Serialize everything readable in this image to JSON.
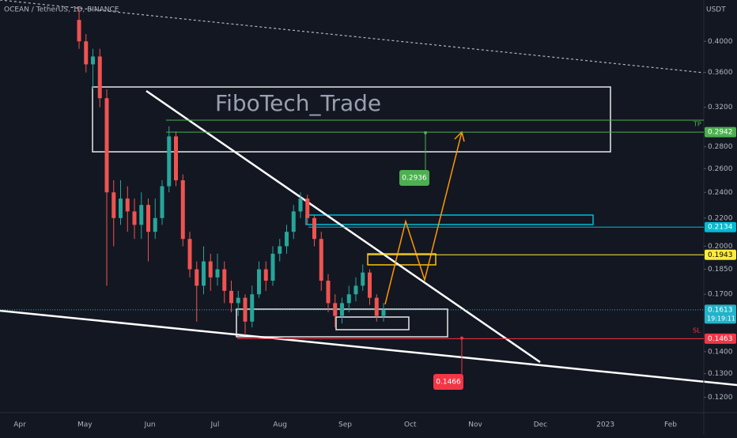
{
  "chart_data": {
    "type": "candlestick",
    "title": "OCEAN / TetherUS, 1D, BINANCE",
    "watermark": "FiboTech_Trade",
    "y_unit": "USDT",
    "log_scale": true,
    "ylim": [
      0.1145,
      0.46
    ],
    "yticks": [
      {
        "value": 0.4,
        "label": "0.4000"
      },
      {
        "value": 0.36,
        "label": "0.3600"
      },
      {
        "value": 0.32,
        "label": "0.3200"
      },
      {
        "value": 0.28,
        "label": "0.2800"
      },
      {
        "value": 0.26,
        "label": "0.2600"
      },
      {
        "value": 0.24,
        "label": "0.2400"
      },
      {
        "value": 0.22,
        "label": "0.2200"
      },
      {
        "value": 0.2,
        "label": "0.2000"
      },
      {
        "value": 0.185,
        "label": "0.1850"
      },
      {
        "value": 0.17,
        "label": "0.1700"
      },
      {
        "value": 0.14,
        "label": "0.1400"
      },
      {
        "value": 0.13,
        "label": "0.1300"
      },
      {
        "value": 0.12,
        "label": "0.1200"
      }
    ],
    "categories": [
      "Apr",
      "May",
      "Jun",
      "Jul",
      "Aug",
      "Sep",
      "Oct",
      "Nov",
      "Dec",
      "2023",
      "Feb"
    ],
    "up_color": "#26a69a",
    "down_color": "#ef5350",
    "candles": [
      [
        0.43,
        0.45,
        0.39,
        0.4
      ],
      [
        0.4,
        0.41,
        0.36,
        0.37
      ],
      [
        0.37,
        0.39,
        0.34,
        0.38
      ],
      [
        0.38,
        0.39,
        0.32,
        0.33
      ],
      [
        0.33,
        0.34,
        0.175,
        0.24
      ],
      [
        0.24,
        0.25,
        0.2,
        0.22
      ],
      [
        0.22,
        0.25,
        0.215,
        0.235
      ],
      [
        0.235,
        0.245,
        0.21,
        0.225
      ],
      [
        0.225,
        0.235,
        0.205,
        0.215
      ],
      [
        0.215,
        0.24,
        0.205,
        0.23
      ],
      [
        0.23,
        0.235,
        0.19,
        0.21
      ],
      [
        0.21,
        0.235,
        0.205,
        0.22
      ],
      [
        0.22,
        0.25,
        0.215,
        0.245
      ],
      [
        0.245,
        0.3,
        0.24,
        0.29
      ],
      [
        0.29,
        0.295,
        0.245,
        0.25
      ],
      [
        0.25,
        0.255,
        0.2,
        0.205
      ],
      [
        0.205,
        0.21,
        0.18,
        0.185
      ],
      [
        0.185,
        0.19,
        0.155,
        0.175
      ],
      [
        0.175,
        0.2,
        0.17,
        0.19
      ],
      [
        0.19,
        0.195,
        0.172,
        0.18
      ],
      [
        0.18,
        0.195,
        0.175,
        0.185
      ],
      [
        0.185,
        0.19,
        0.165,
        0.172
      ],
      [
        0.172,
        0.178,
        0.16,
        0.165
      ],
      [
        0.165,
        0.172,
        0.158,
        0.168
      ],
      [
        0.168,
        0.17,
        0.148,
        0.155
      ],
      [
        0.155,
        0.175,
        0.152,
        0.17
      ],
      [
        0.17,
        0.19,
        0.168,
        0.185
      ],
      [
        0.185,
        0.19,
        0.172,
        0.178
      ],
      [
        0.178,
        0.2,
        0.175,
        0.195
      ],
      [
        0.195,
        0.205,
        0.19,
        0.2
      ],
      [
        0.2,
        0.215,
        0.195,
        0.21
      ],
      [
        0.21,
        0.23,
        0.205,
        0.225
      ],
      [
        0.225,
        0.24,
        0.22,
        0.235
      ],
      [
        0.235,
        0.238,
        0.215,
        0.22
      ],
      [
        0.22,
        0.222,
        0.2,
        0.205
      ],
      [
        0.205,
        0.21,
        0.172,
        0.178
      ],
      [
        0.178,
        0.182,
        0.16,
        0.165
      ],
      [
        0.165,
        0.17,
        0.152,
        0.158
      ],
      [
        0.158,
        0.168,
        0.154,
        0.165
      ],
      [
        0.165,
        0.175,
        0.16,
        0.17
      ],
      [
        0.17,
        0.18,
        0.166,
        0.175
      ],
      [
        0.175,
        0.188,
        0.172,
        0.183
      ],
      [
        0.183,
        0.185,
        0.164,
        0.168
      ],
      [
        0.168,
        0.17,
        0.155,
        0.158
      ],
      [
        0.158,
        0.165,
        0.155,
        0.1613
      ]
    ],
    "levels": [
      {
        "value": 0.2942,
        "color": "#4caf50"
      },
      {
        "value": 0.2134,
        "color": "#00bcd4"
      },
      {
        "value": 0.1943,
        "color": "#ffeb3b"
      },
      {
        "value": 0.1613,
        "color": "#22b3c9",
        "countdown": "19:19:11"
      },
      {
        "value": 0.1463,
        "color": "#f23645"
      }
    ],
    "tp_label": "TP",
    "sl_label": "SL",
    "callouts": [
      {
        "value": 0.2936,
        "color": "#4caf50"
      },
      {
        "value": 0.1466,
        "color": "#f23645"
      }
    ]
  }
}
